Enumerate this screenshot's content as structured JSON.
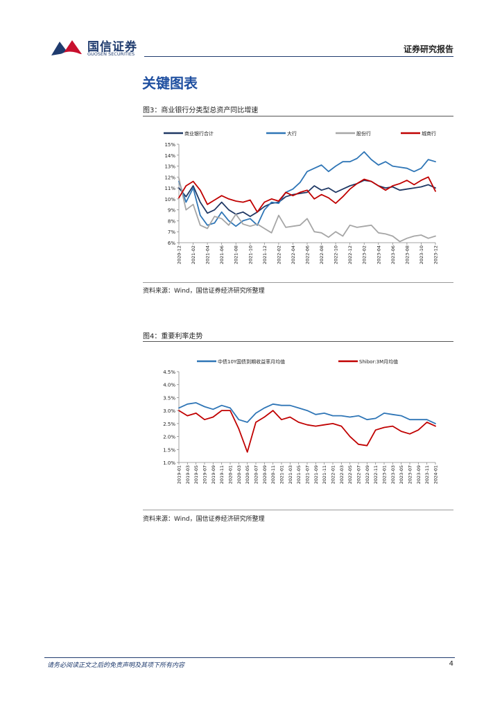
{
  "header": {
    "logo_cn": "国信证券",
    "logo_en": "GUOSEN SECURITIES",
    "report_type": "证券研究报告"
  },
  "section_title": "关键图表",
  "figures": [
    {
      "title": "图3：商业银行分类型总资产同比增速",
      "source": "资料来源：Wind，国信证券经济研究所整理"
    },
    {
      "title": "图4：重要利率走势",
      "source": "资料来源：Wind，国信证券经济研究所整理"
    }
  ],
  "footer": {
    "disclaimer": "请务必阅读正文之后的免责声明及其项下所有内容",
    "page_number": "4"
  },
  "colors": {
    "brand_red": "#c8102e",
    "brand_blue": "#1f3b6e",
    "navy": "#1f3864",
    "blue": "#2e75b6",
    "gray": "#a6a6a6",
    "red": "#c00000"
  },
  "chart_data": [
    {
      "type": "line",
      "x": [
        "2020-12",
        "2021-01",
        "2021-02",
        "2021-03",
        "2021-04",
        "2021-05",
        "2021-06",
        "2021-07",
        "2021-08",
        "2021-09",
        "2021-10",
        "2021-11",
        "2021-12",
        "2022-01",
        "2022-02",
        "2022-03",
        "2022-04",
        "2022-05",
        "2022-06",
        "2022-07",
        "2022-08",
        "2022-09",
        "2022-10",
        "2022-11",
        "2022-12",
        "2023-01",
        "2023-02",
        "2023-03",
        "2023-04",
        "2023-05",
        "2023-06",
        "2023-07",
        "2023-08",
        "2023-09",
        "2023-10",
        "2023-11",
        "2023-12"
      ],
      "xticks": [
        "2020-12",
        "2021-02",
        "2021-04",
        "2021-06",
        "2021-08",
        "2021-10",
        "2021-12",
        "2022-02",
        "2022-04",
        "2022-06",
        "2022-08",
        "2022-10",
        "2022-12",
        "2023-02",
        "2023-04",
        "2023-06",
        "2023-08",
        "2023-10",
        "2023-12"
      ],
      "yticks": [
        "6%",
        "7%",
        "8%",
        "9%",
        "10%",
        "11%",
        "12%",
        "13%",
        "14%",
        "15%"
      ],
      "ylim": [
        6,
        15
      ],
      "series": [
        {
          "name": "商业银行合计",
          "color": "#1f3864",
          "values": [
            11.0,
            10.2,
            11.2,
            9.7,
            8.7,
            9.0,
            9.7,
            9.0,
            8.6,
            8.8,
            8.4,
            8.8,
            9.3,
            9.6,
            9.7,
            10.2,
            10.4,
            10.5,
            10.6,
            11.2,
            10.8,
            11.0,
            10.6,
            10.9,
            11.2,
            11.4,
            11.7,
            11.6,
            11.2,
            11.0,
            11.1,
            10.8,
            10.9,
            11.0,
            11.1,
            11.3,
            11.0
          ]
        },
        {
          "name": "大行",
          "color": "#2e75b6",
          "values": [
            11.6,
            9.7,
            11.0,
            8.5,
            7.6,
            7.8,
            8.8,
            8.0,
            7.5,
            8.0,
            8.2,
            7.6,
            9.0,
            9.7,
            9.6,
            10.6,
            10.9,
            11.5,
            12.5,
            12.8,
            13.1,
            12.5,
            13.0,
            13.4,
            13.4,
            13.7,
            14.3,
            13.6,
            13.1,
            13.4,
            13.0,
            12.9,
            12.8,
            12.5,
            12.8,
            13.6,
            13.4
          ]
        },
        {
          "name": "股份行",
          "color": "#a6a6a6",
          "values": [
            11.9,
            9.0,
            9.5,
            7.6,
            7.3,
            8.4,
            8.2,
            7.6,
            8.6,
            7.7,
            7.5,
            7.7,
            7.3,
            6.9,
            8.5,
            7.4,
            7.5,
            7.6,
            8.2,
            7.0,
            6.9,
            6.5,
            7.0,
            6.6,
            7.6,
            7.4,
            7.5,
            7.6,
            6.9,
            6.8,
            6.6,
            6.1,
            6.4,
            6.6,
            6.7,
            6.4,
            6.6
          ]
        },
        {
          "name": "城商行",
          "color": "#c00000",
          "values": [
            10.1,
            11.2,
            11.6,
            10.8,
            9.5,
            9.9,
            10.3,
            10.0,
            9.8,
            9.7,
            9.9,
            8.8,
            9.7,
            10.0,
            9.8,
            10.6,
            10.3,
            10.6,
            10.8,
            10.0,
            10.4,
            10.1,
            9.6,
            10.2,
            10.9,
            11.4,
            11.8,
            11.6,
            11.2,
            10.8,
            11.2,
            11.4,
            11.7,
            11.3,
            11.7,
            12.0,
            10.7
          ]
        }
      ]
    },
    {
      "type": "line",
      "x": [
        "2019-01",
        "2019-03",
        "2019-05",
        "2019-07",
        "2019-09",
        "2019-11",
        "2020-01",
        "2020-03",
        "2020-05",
        "2020-07",
        "2020-09",
        "2020-11",
        "2021-01",
        "2021-03",
        "2021-05",
        "2021-07",
        "2021-09",
        "2021-11",
        "2022-01",
        "2022-03",
        "2022-05",
        "2022-07",
        "2022-09",
        "2022-11",
        "2023-01",
        "2023-03",
        "2023-05",
        "2023-07",
        "2023-09",
        "2023-11",
        "2024-01"
      ],
      "xticks": [
        "2019-01",
        "2019-03",
        "2019-05",
        "2019-07",
        "2019-09",
        "2019-11",
        "2020-01",
        "2020-03",
        "2020-05",
        "2020-07",
        "2020-09",
        "2020-11",
        "2021-01",
        "2021-03",
        "2021-05",
        "2021-07",
        "2021-09",
        "2021-11",
        "2022-01",
        "2022-03",
        "2022-05",
        "2022-07",
        "2022-09",
        "2022-11",
        "2023-01",
        "2023-03",
        "2023-05",
        "2023-07",
        "2023-09",
        "2023-11",
        "2024-01"
      ],
      "yticks": [
        "1.0%",
        "1.5%",
        "2.0%",
        "2.5%",
        "3.0%",
        "3.5%",
        "4.0%",
        "4.5%"
      ],
      "ylim": [
        1.0,
        4.5
      ],
      "series": [
        {
          "name": "中债10Y国债到期收益率月均值",
          "color": "#2e75b6",
          "values": [
            3.1,
            3.25,
            3.3,
            3.15,
            3.05,
            3.2,
            3.1,
            2.65,
            2.55,
            2.9,
            3.1,
            3.25,
            3.2,
            3.2,
            3.1,
            3.0,
            2.85,
            2.9,
            2.8,
            2.8,
            2.75,
            2.8,
            2.65,
            2.7,
            2.9,
            2.85,
            2.8,
            2.65,
            2.65,
            2.65,
            2.5
          ]
        },
        {
          "name": "Shibor:3M月均值",
          "color": "#c00000",
          "values": [
            3.0,
            2.8,
            2.9,
            2.65,
            2.75,
            3.0,
            3.0,
            2.3,
            1.4,
            2.55,
            2.75,
            3.0,
            2.65,
            2.75,
            2.55,
            2.45,
            2.4,
            2.45,
            2.5,
            2.4,
            2.0,
            1.7,
            1.65,
            2.25,
            2.35,
            2.4,
            2.2,
            2.1,
            2.25,
            2.55,
            2.4
          ]
        }
      ]
    }
  ]
}
